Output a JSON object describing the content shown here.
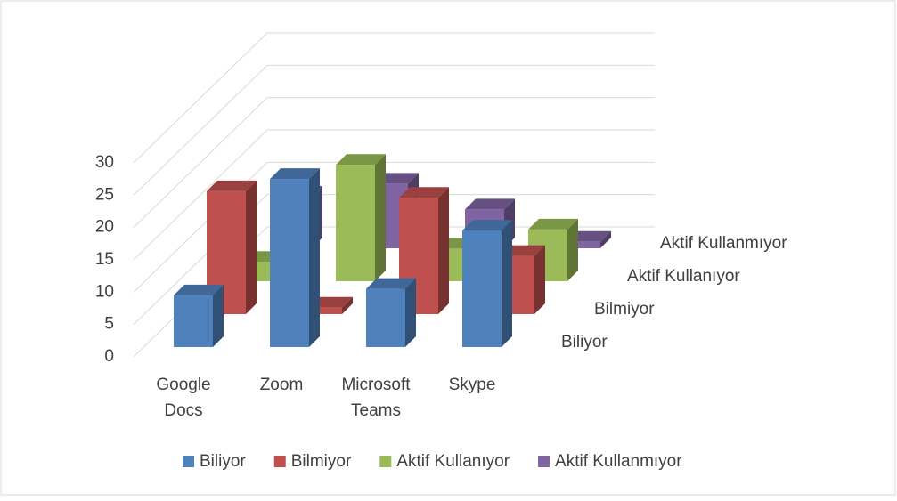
{
  "chart_data": {
    "type": "bar3d",
    "categories": [
      "Google Docs",
      "Zoom",
      "Microsoft Teams",
      "Skype"
    ],
    "series": [
      {
        "name": "Biliyor",
        "color": "#4f81bd",
        "values": [
          8,
          26,
          9,
          18
        ]
      },
      {
        "name": "Bilmiyor",
        "color": "#c0504d",
        "values": [
          19,
          1,
          18,
          9
        ]
      },
      {
        "name": "Aktif Kullanıyor",
        "color": "#9bbb59",
        "values": [
          3,
          18,
          5,
          8
        ]
      },
      {
        "name": "Aktif Kullanmıyor",
        "color": "#8064a2",
        "values": [
          8,
          10,
          6,
          1
        ]
      }
    ],
    "ylim": [
      0,
      30
    ],
    "yticks": [
      0,
      5,
      10,
      15,
      20,
      25,
      30
    ],
    "grid": true,
    "legend": "bottom"
  }
}
